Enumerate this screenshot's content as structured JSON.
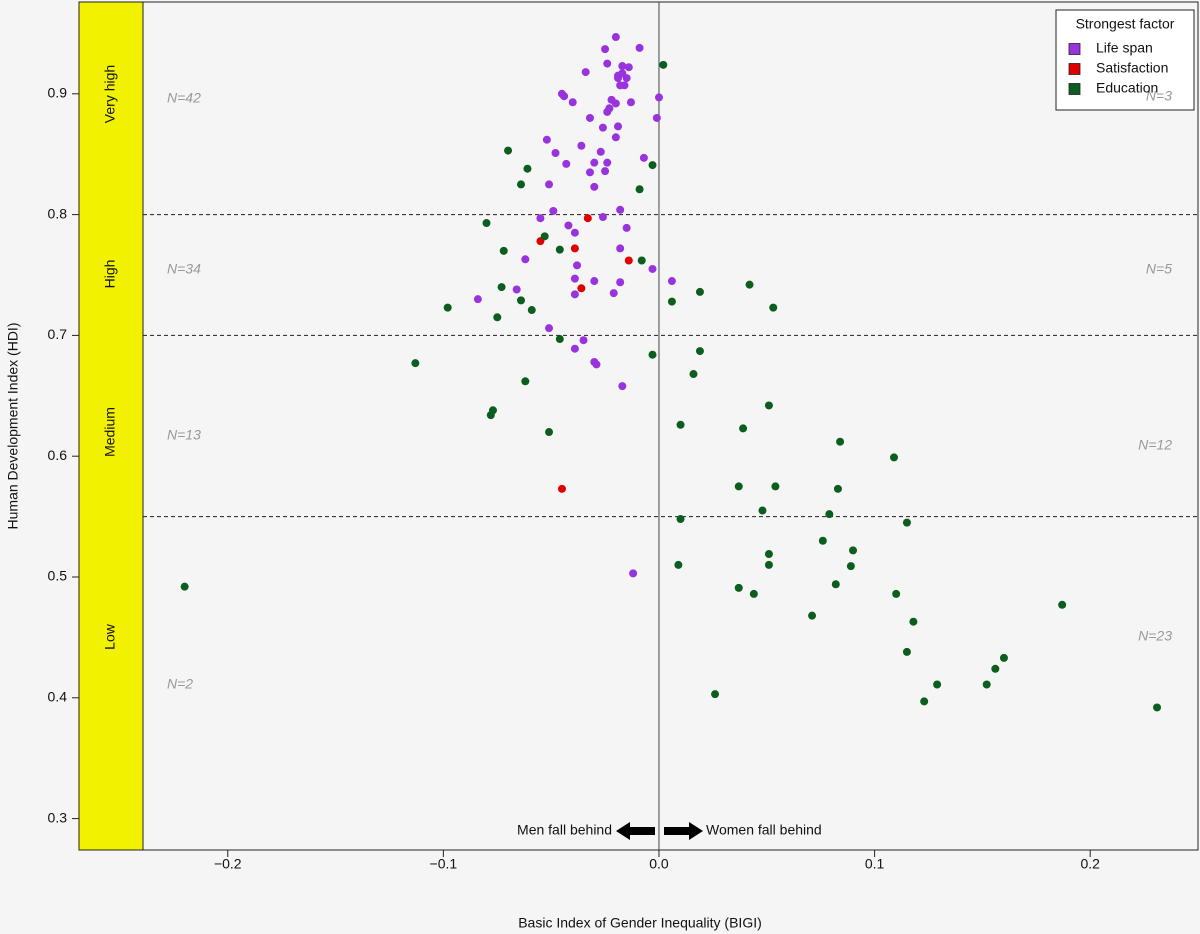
{
  "chart_data": {
    "type": "scatter",
    "x_label": "Basic Index of Gender Inequality (BIGI)",
    "y_label": "Human Development Index (HDI)",
    "xlim": [
      -0.269,
      0.25
    ],
    "ylim": [
      0.274,
      0.976
    ],
    "xticks": [
      {
        "value": -0.2,
        "label": "−0.2"
      },
      {
        "value": -0.1,
        "label": "−0.1"
      },
      {
        "value": 0,
        "label": "0.0"
      },
      0.1,
      0.2
    ],
    "yticks": [
      0.3,
      0.4,
      0.5,
      0.6,
      0.7,
      0.8,
      0.9
    ],
    "hlines": [
      0.8,
      0.7,
      0.55
    ],
    "vline": 0,
    "bands": [
      "Very high",
      "High",
      "Medium",
      "Low"
    ],
    "n_left": [
      "N=42",
      "N=34",
      "N=13",
      "N=2"
    ],
    "n_right": [
      "N=3",
      "N=5",
      "N=12",
      "N=23"
    ],
    "annotations": [
      "Men fall behind",
      "Women fall behind"
    ],
    "legend_title": "Strongest factor",
    "legend": "upper right",
    "series": [
      {
        "name": "Life span",
        "color": "#9933dd",
        "x": [
          -0.02,
          -0.009,
          -0.025,
          -0.017,
          -0.014,
          -0.024,
          -0.034,
          -0.017,
          -0.019,
          -0.019,
          -0.015,
          -0.018,
          -0.016,
          -0.013,
          -0.022,
          -0.045,
          -0.044,
          -0.04,
          -0.02,
          -0.023,
          -0.024,
          0.0,
          -0.032,
          -0.001,
          -0.019,
          -0.026,
          -0.02,
          -0.027,
          -0.052,
          -0.036,
          -0.048,
          -0.007,
          -0.024,
          -0.03,
          -0.043,
          -0.032,
          -0.025,
          -0.051,
          -0.03,
          -0.049,
          -0.055,
          -0.018,
          -0.042,
          -0.026,
          -0.015,
          -0.039,
          -0.018,
          -0.003,
          0.006,
          -0.038,
          -0.03,
          -0.021,
          -0.018,
          -0.039,
          -0.039,
          -0.066,
          -0.084,
          -0.062,
          -0.051,
          -0.035,
          -0.039,
          -0.03,
          -0.029,
          -0.017,
          -0.012
        ],
        "values": [
          0.947,
          0.938,
          0.937,
          0.923,
          0.922,
          0.925,
          0.918,
          0.917,
          0.915,
          0.913,
          0.913,
          0.907,
          0.907,
          0.893,
          0.895,
          0.9,
          0.898,
          0.893,
          0.892,
          0.888,
          0.885,
          0.897,
          0.88,
          0.88,
          0.873,
          0.872,
          0.864,
          0.852,
          0.862,
          0.857,
          0.851,
          0.847,
          0.843,
          0.843,
          0.842,
          0.835,
          0.836,
          0.825,
          0.823,
          0.803,
          0.797,
          0.804,
          0.791,
          0.798,
          0.789,
          0.785,
          0.772,
          0.755,
          0.745,
          0.758,
          0.745,
          0.735,
          0.744,
          0.747,
          0.734,
          0.738,
          0.73,
          0.763,
          0.706,
          0.696,
          0.689,
          0.678,
          0.676,
          0.658,
          0.503
        ]
      },
      {
        "name": "Satisfaction",
        "color": "#e00000",
        "x": [
          -0.055,
          -0.033,
          -0.039,
          -0.014,
          -0.036,
          -0.045
        ],
        "values": [
          0.778,
          0.797,
          0.772,
          0.762,
          0.739,
          0.573
        ]
      },
      {
        "name": "Education",
        "color": "#0b5e1e",
        "x": [
          0.002,
          -0.07,
          -0.003,
          -0.061,
          -0.009,
          -0.064,
          -0.08,
          -0.053,
          -0.046,
          -0.072,
          -0.008,
          -0.073,
          -0.098,
          -0.064,
          -0.059,
          0.006,
          0.019,
          0.042,
          0.053,
          -0.075,
          -0.046,
          -0.003,
          0.019,
          0.016,
          -0.113,
          -0.062,
          -0.077,
          -0.078,
          0.051,
          -0.051,
          0.01,
          0.039,
          0.084,
          0.109,
          0.037,
          0.054,
          0.083,
          0.048,
          0.079,
          0.01,
          0.076,
          0.115,
          0.051,
          0.09,
          0.051,
          0.009,
          0.089,
          -0.22,
          0.037,
          0.082,
          0.044,
          0.11,
          0.187,
          0.071,
          0.118,
          0.115,
          0.16,
          0.156,
          0.129,
          0.152,
          0.026,
          0.123,
          0.231
        ],
        "values": [
          0.924,
          0.853,
          0.841,
          0.838,
          0.821,
          0.825,
          0.793,
          0.782,
          0.771,
          0.77,
          0.762,
          0.74,
          0.723,
          0.729,
          0.721,
          0.728,
          0.736,
          0.742,
          0.723,
          0.715,
          0.697,
          0.684,
          0.687,
          0.668,
          0.677,
          0.662,
          0.638,
          0.634,
          0.642,
          0.62,
          0.626,
          0.623,
          0.612,
          0.599,
          0.575,
          0.575,
          0.573,
          0.555,
          0.552,
          0.548,
          0.53,
          0.545,
          0.519,
          0.522,
          0.51,
          0.51,
          0.509,
          0.492,
          0.491,
          0.494,
          0.486,
          0.486,
          0.477,
          0.468,
          0.463,
          0.438,
          0.433,
          0.424,
          0.411,
          0.411,
          0.403,
          0.397,
          0.392
        ]
      }
    ]
  }
}
